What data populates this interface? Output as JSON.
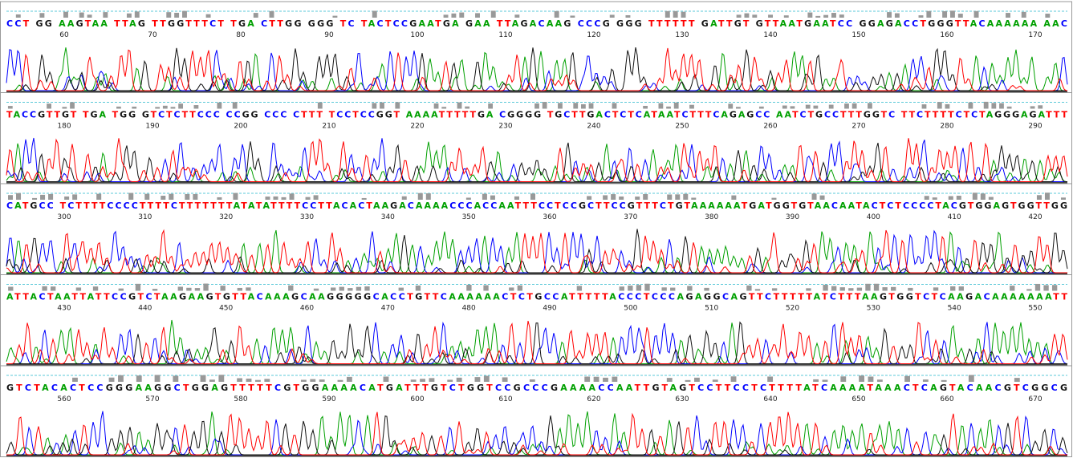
{
  "rows": [
    {
      "sequence": "CCT GG AAGTAA TTAG TTGGTTTCT TGA CTTGG GGG TC TACTCCGAATGA GAA TTAGACAAG CCCG GGG TTTTTT GATTGT GTTAATGAATCC GGAGACCTGGGTTACAAAAAA AAC",
      "positions": [
        "60",
        "70",
        "80",
        "90",
        "100",
        "110",
        "120",
        "130",
        "140",
        "150",
        "160",
        "170"
      ]
    },
    {
      "sequence": "TACCGTTGT TGA TGG GTCTCTTCCC CCGG CCC CTTT TCCTCCGGT AAAATTTTTGA CGGGG TGCTTGACTCTCATAATCTTTCAGAGCC AATCTGCCTTTGGTC TTCTTTTCTCTAGGGAGATTT",
      "positions": [
        "180",
        "190",
        "200",
        "210",
        "220",
        "230",
        "240",
        "250",
        "260",
        "270",
        "280",
        "290"
      ]
    },
    {
      "sequence": "CATGCC TCTTTTCCCCTTTTCTTTTTTTATATATTTTCCTTACACTAAGACAAAACCCACCAATTTCCTCCGCTTCCGTTTCTGTAAAAAATGATGGTGTAACAATACTCTCCCCTACGTGGAGTGGTTGG",
      "positions": [
        "300",
        "310",
        "320",
        "330",
        "340",
        "350",
        "360",
        "370",
        "380",
        "390",
        "400",
        "410",
        "420"
      ]
    },
    {
      "sequence": "ATTACTAATTATTCCGTCTAAGAAGTGTTACAAAGCAAGGGGGCACCTGTTCAAAAAACTCTGCCATTTTTACCCTCCCAGAGGCAGTTCTTTTTATCTTTAAGTGGTCTCAAGACAAAAAAATT",
      "positions": [
        "430",
        "440",
        "450",
        "460",
        "470",
        "480",
        "490",
        "500",
        "510",
        "520",
        "530",
        "540",
        "550"
      ]
    },
    {
      "sequence": "GTCTACACTCCGGGAAGGCTGGAGTTTTTCGTGGAAAACATGATTTGTCTGGTCCGCCCGAAAACCAATTGTAGTCCTTCCTCTTTTATCAAAATAAACTCAGTACAACGTCGGCG",
      "positions": [
        "560",
        "570",
        "580",
        "590",
        "600",
        "610",
        "620",
        "630",
        "640",
        "650",
        "660",
        "670"
      ]
    }
  ]
}
